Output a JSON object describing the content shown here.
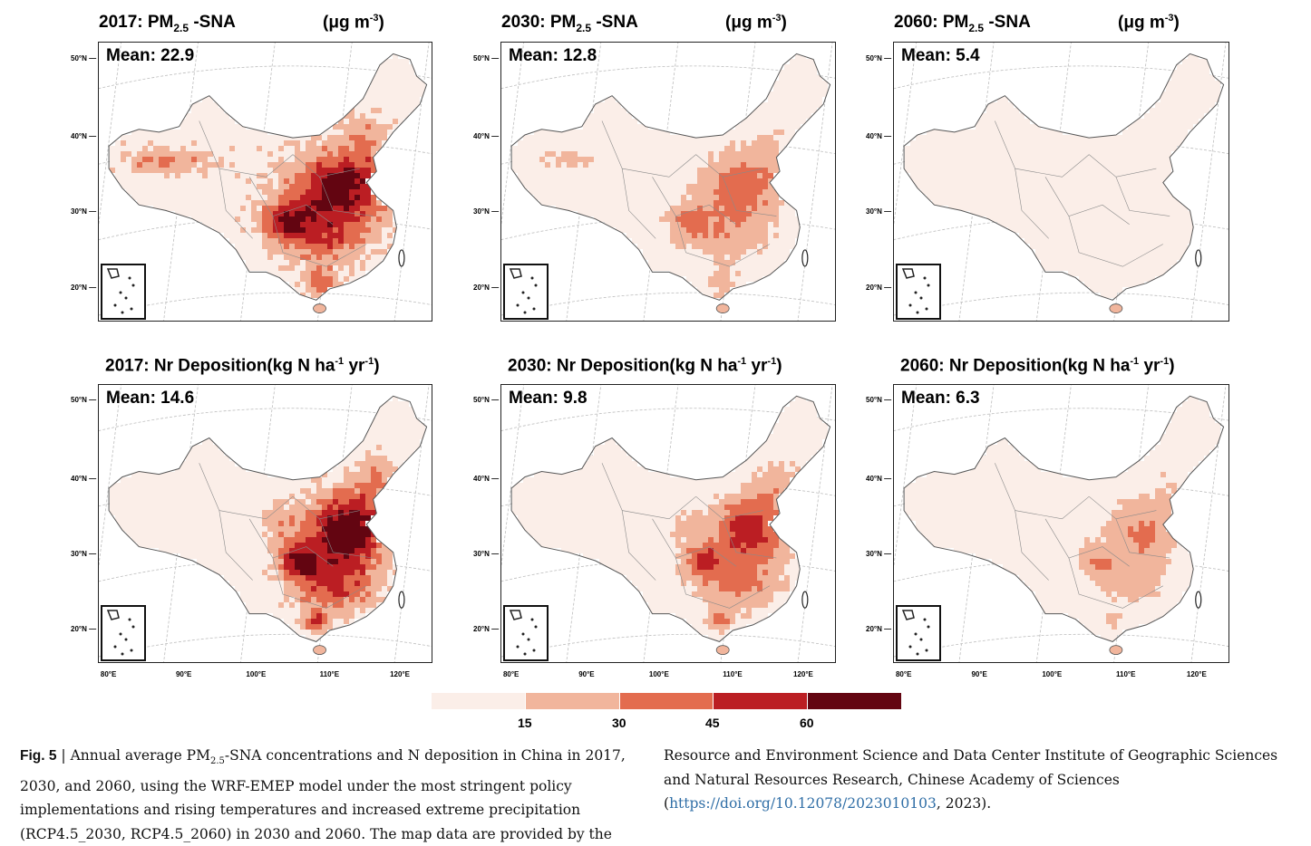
{
  "panels": [
    {
      "row": 0,
      "col": 0,
      "title_pre": "2017: PM",
      "title_sub": "2.5",
      "title_post": " -SNA",
      "unit_pre": "(μg m",
      "unit_sup": "-3",
      "unit_post": ")",
      "mean": "Mean: 22.9",
      "intensity": 1.0,
      "pattern": "pm"
    },
    {
      "row": 0,
      "col": 1,
      "title_pre": "2030: PM",
      "title_sub": "2.5",
      "title_post": " -SNA",
      "unit_pre": "(μg m",
      "unit_sup": "-3",
      "unit_post": ")",
      "mean": "Mean: 12.8",
      "intensity": 0.55,
      "pattern": "pm"
    },
    {
      "row": 0,
      "col": 2,
      "title_pre": "2060: PM",
      "title_sub": "2.5",
      "title_post": " -SNA",
      "unit_pre": "(μg m",
      "unit_sup": "-3",
      "unit_post": ")",
      "mean": "Mean: 5.4",
      "intensity": 0.12,
      "pattern": "pm"
    },
    {
      "row": 1,
      "col": 0,
      "title_pre": "2017: Nr Deposition(kg N ha",
      "title_sup": "-1",
      "title_mid": " yr",
      "title_sup2": "-1",
      "title_post": ")",
      "mean": "Mean: 14.6",
      "intensity": 1.0,
      "pattern": "nr"
    },
    {
      "row": 1,
      "col": 1,
      "title_pre": "2030: Nr Deposition(kg N ha",
      "title_sup": "-1",
      "title_mid": " yr",
      "title_sup2": "-1",
      "title_post": ")",
      "mean": "Mean: 9.8",
      "intensity": 0.7,
      "pattern": "nr"
    },
    {
      "row": 1,
      "col": 2,
      "title_pre": "2060: Nr Deposition(kg N ha",
      "title_sup": "-1",
      "title_mid": " yr",
      "title_sup2": "-1",
      "title_post": ")",
      "mean": "Mean: 6.3",
      "intensity": 0.42,
      "pattern": "nr"
    }
  ],
  "lat_labels": [
    "50°N",
    "40°N",
    "30°N",
    "20°N"
  ],
  "lon_labels": [
    "80°E",
    "90°E",
    "100°E",
    "110°E",
    "120°E"
  ],
  "legend": {
    "colors": [
      "#fbeee8",
      "#f1b59c",
      "#e36c4f",
      "#bb1e23",
      "#630511"
    ],
    "labels": [
      "15",
      "30",
      "45",
      "60"
    ]
  },
  "caption": {
    "fig_label": "Fig. 5",
    "sep": " | ",
    "left_a": "Annual average PM",
    "left_sub": "2.5",
    "left_b": "-SNA concentrations and N deposition in China in 2017, 2030, and 2060, using the WRF-EMEP model under the most stringent policy implementations and rising temperatures and increased extreme precipitation (RCP4.5_2030, RCP4.5_2060) in 2030 and 2060. The map data are provided by the",
    "right_a": "Resource and Environment Science and Data Center Institute of Geographic Sciences and Natural Resources Research, Chinese Academy of Sciences (",
    "right_link": "https://doi.org/10.12078/2023010103",
    "right_b": ", 2023)."
  }
}
